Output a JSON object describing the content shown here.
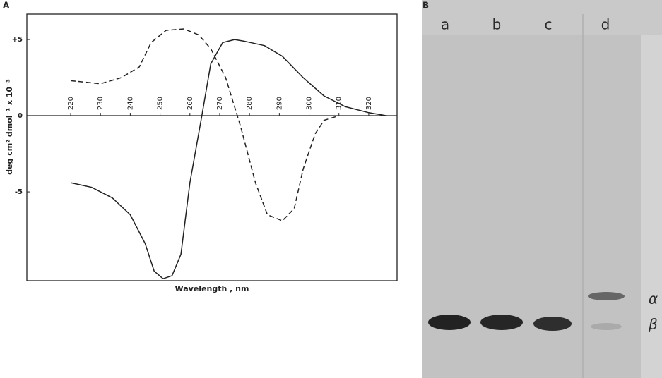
{
  "chart_data": {
    "type": "line",
    "panel_label": "A",
    "xlabel": "Wavelength , nm",
    "ylabel": "deg cm² dmol⁻¹ x 10⁻³",
    "xlim": [
      205.3,
      329.5
    ],
    "ylim": [
      -10.83,
      6.67
    ],
    "xticks": [
      220,
      230,
      240,
      250,
      260,
      270,
      280,
      290,
      300,
      310,
      320
    ],
    "yticks": [
      {
        "value": 5,
        "label": "+5"
      },
      0,
      -5
    ],
    "series": [
      {
        "color": "#222222",
        "dash": false,
        "x": [
          220,
          227,
          234,
          240,
          245,
          248,
          251,
          254,
          257,
          260,
          264,
          267,
          271,
          275,
          278,
          285,
          291,
          298,
          305,
          312,
          320,
          326
        ],
        "values": [
          -4.4,
          -4.7,
          -5.4,
          -6.5,
          -8.4,
          -10.2,
          -10.7,
          -10.5,
          -9.1,
          -4.4,
          0,
          3.4,
          4.8,
          5.0,
          4.9,
          4.6,
          3.9,
          2.5,
          1.3,
          0.6,
          0.2,
          0
        ]
      },
      {
        "color": "#222222",
        "dash": true,
        "x": [
          220,
          230,
          237,
          243,
          247,
          252,
          258,
          263,
          267,
          272,
          277,
          282,
          286,
          291,
          295,
          298,
          302,
          305,
          310
        ],
        "values": [
          2.3,
          2.1,
          2.5,
          3.2,
          4.8,
          5.6,
          5.7,
          5.3,
          4.4,
          2.5,
          -0.7,
          -4.4,
          -6.5,
          -6.9,
          -6.1,
          -3.5,
          -1.2,
          -0.3,
          0
        ]
      }
    ]
  },
  "gel": {
    "panel_label": "B",
    "lanes": [
      "a",
      "b",
      "c",
      "d"
    ],
    "bands": [
      "α",
      "β"
    ]
  }
}
